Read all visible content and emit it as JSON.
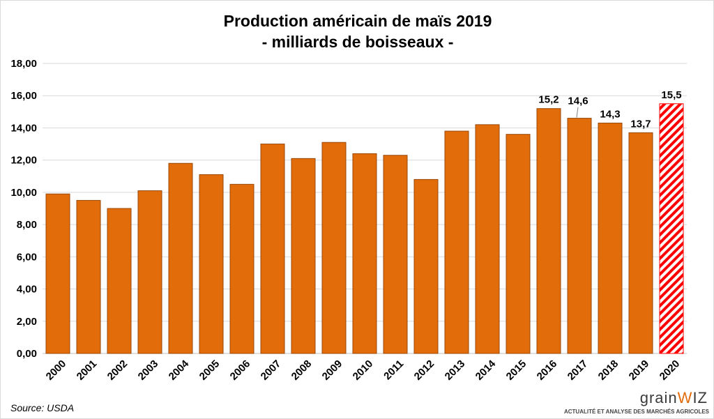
{
  "chart_data": {
    "type": "bar",
    "title": [
      "Production américain de maïs 2019",
      "- milliards de boisseaux -"
    ],
    "categories": [
      "2000",
      "2001",
      "2002",
      "2003",
      "2004",
      "2005",
      "2006",
      "2007",
      "2008",
      "2009",
      "2010",
      "2011",
      "2012",
      "2013",
      "2014",
      "2015",
      "2016",
      "2017",
      "2018",
      "2019",
      "2020"
    ],
    "values": [
      9.9,
      9.5,
      9.0,
      10.1,
      11.8,
      11.1,
      10.5,
      13.0,
      12.1,
      13.1,
      12.4,
      12.3,
      10.8,
      13.8,
      14.2,
      13.6,
      15.2,
      14.6,
      14.3,
      13.7,
      15.5
    ],
    "data_labels": {
      "16": "15,2",
      "17": "14,6",
      "18": "14,3",
      "19": "13,7",
      "20": "15,5"
    },
    "hatched_index": 20,
    "ylim": [
      0,
      18
    ],
    "yticks": [
      "0,00",
      "2,00",
      "4,00",
      "6,00",
      "8,00",
      "10,00",
      "12,00",
      "14,00",
      "16,00",
      "18,00"
    ],
    "grid": true,
    "colors": {
      "bar": "#E36C0A",
      "bar_edge": "#984807",
      "hatch": "#FF0000"
    }
  },
  "source": "Source: USDA",
  "logo": {
    "text": "grainwiz",
    "tagline": "ACTUALITÉ ET ANALYSE DES MARCHÉS AGRICOLES"
  }
}
